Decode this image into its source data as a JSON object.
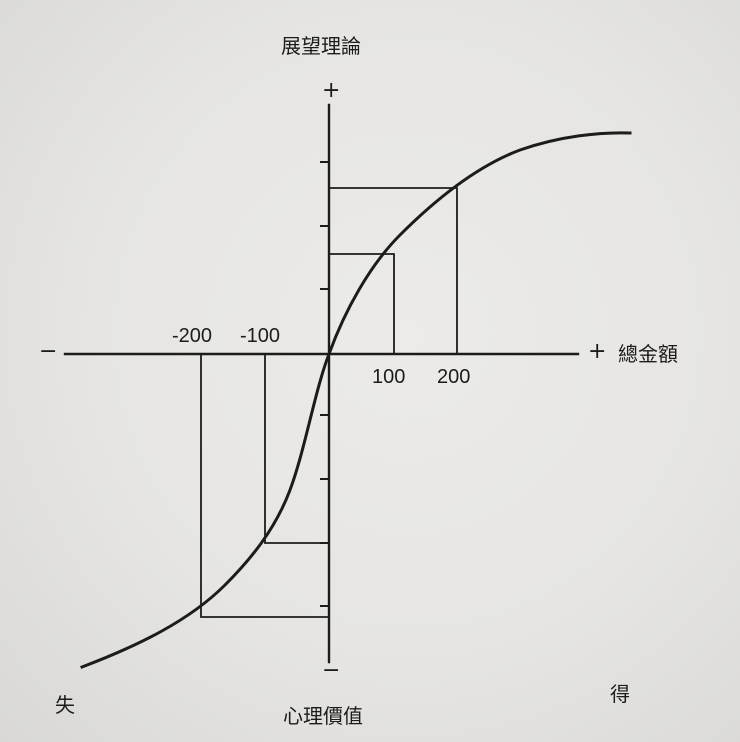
{
  "title": "展望理論",
  "x_axis_label": "總金額",
  "y_axis_label": "心理價值",
  "loss_label": "失",
  "gain_label": "得",
  "signs": {
    "y_positive": "+",
    "y_negative": "−",
    "x_positive": "+",
    "x_negative": "−"
  },
  "chart_data": {
    "type": "line",
    "title": "展望理論",
    "xlabel": "總金額",
    "ylabel": "心理價值",
    "x_tick_labels": [
      "-200",
      "-100",
      "100",
      "200"
    ],
    "marked_points": [
      {
        "x": -200,
        "y": -4
      },
      {
        "x": -100,
        "y": -3
      },
      {
        "x": 100,
        "y": 1.5
      },
      {
        "x": 200,
        "y": 2.5
      }
    ],
    "curve_shape": "S-shaped value function, concave for gains, convex and steeper for losses",
    "y_tick_count_each_side": 4
  }
}
